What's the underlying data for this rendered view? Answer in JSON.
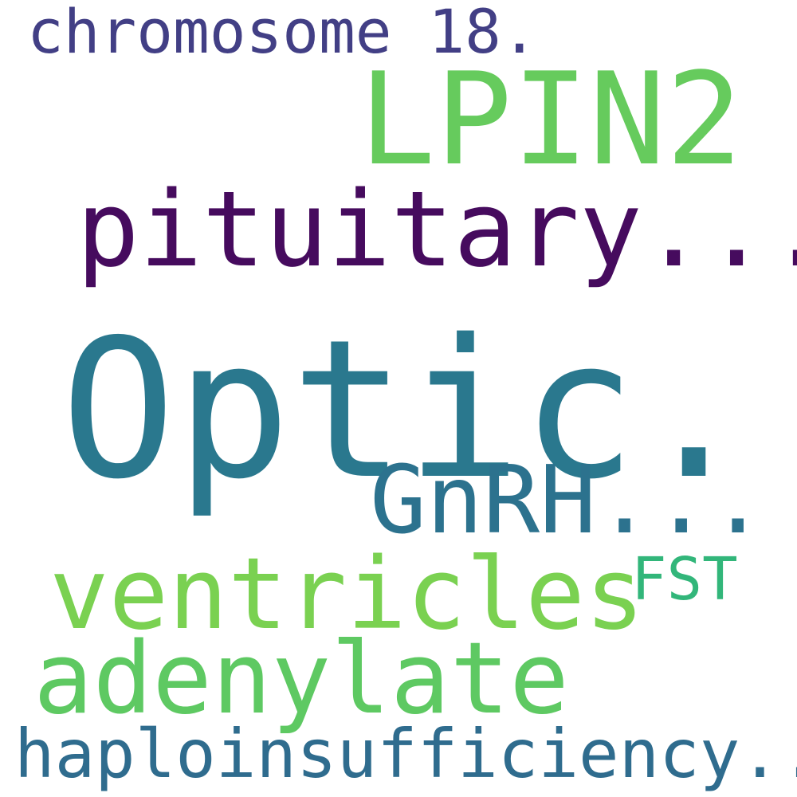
{
  "words": [
    {
      "id": "chromosome",
      "text": "chromosome 18.",
      "color": "#423f85"
    },
    {
      "id": "lpin2",
      "text": "LPIN2",
      "color": "#66cb5d"
    },
    {
      "id": "pituitary",
      "text": "pituitary...",
      "color": "#460b5e"
    },
    {
      "id": "optic",
      "text": "Optic...",
      "color": "#2a788e"
    },
    {
      "id": "gnrh",
      "text": "GnRH...",
      "color": "#2c728e"
    },
    {
      "id": "ventricles",
      "text": "ventricles",
      "color": "#7ad151"
    },
    {
      "id": "fst",
      "text": "FST",
      "color": "#32b67a"
    },
    {
      "id": "adenylate",
      "text": "adenylate",
      "color": "#5ec962"
    },
    {
      "id": "haploinsufficiency",
      "text": "haploinsufficiency...",
      "color": "#2f6c8e"
    }
  ]
}
